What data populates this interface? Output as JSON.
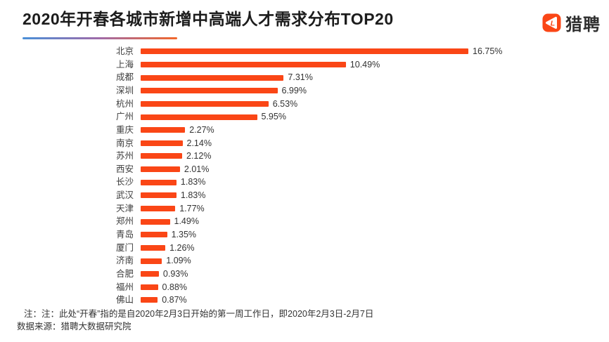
{
  "header": {
    "title": "2020年开春各城市新增中高端人才需求分布TOP20",
    "brand": {
      "name": "猎聘",
      "icon_letter": "L"
    }
  },
  "colors": {
    "bar": "#fa4616",
    "brand": "#fa4616",
    "underline_gradient": [
      "#4a90d8",
      "#a06aa8",
      "#f2682a"
    ]
  },
  "chart_data": {
    "type": "bar",
    "orientation": "horizontal",
    "title": "2020年开春各城市新增中高端人才需求分布TOP20",
    "xlabel": "",
    "ylabel": "",
    "xlim": [
      0,
      16.75
    ],
    "grid": false,
    "legend": false,
    "categories": [
      "北京",
      "上海",
      "成都",
      "深圳",
      "杭州",
      "广州",
      "重庆",
      "南京",
      "苏州",
      "西安",
      "长沙",
      "武汉",
      "天津",
      "郑州",
      "青岛",
      "厦门",
      "济南",
      "合肥",
      "福州",
      "佛山"
    ],
    "values": [
      16.75,
      10.49,
      7.31,
      6.99,
      6.53,
      5.95,
      2.27,
      2.14,
      2.12,
      2.01,
      1.83,
      1.83,
      1.77,
      1.49,
      1.35,
      1.26,
      1.09,
      0.93,
      0.88,
      0.87
    ],
    "value_labels": [
      "16.75%",
      "10.49%",
      "7.31%",
      "6.99%",
      "6.53%",
      "5.95%",
      "2.27%",
      "2.14%",
      "2.12%",
      "2.01%",
      "1.83%",
      "1.83%",
      "1.77%",
      "1.49%",
      "1.35%",
      "1.26%",
      "1.09%",
      "0.93%",
      "0.88%",
      "0.87%"
    ]
  },
  "footer": {
    "note": "注：注：此处“开春”指的是自2020年2月3日开始的第一周工作日，即2020年2月3日-2月7日",
    "source": "数据来源：猎聘大数据研究院"
  }
}
